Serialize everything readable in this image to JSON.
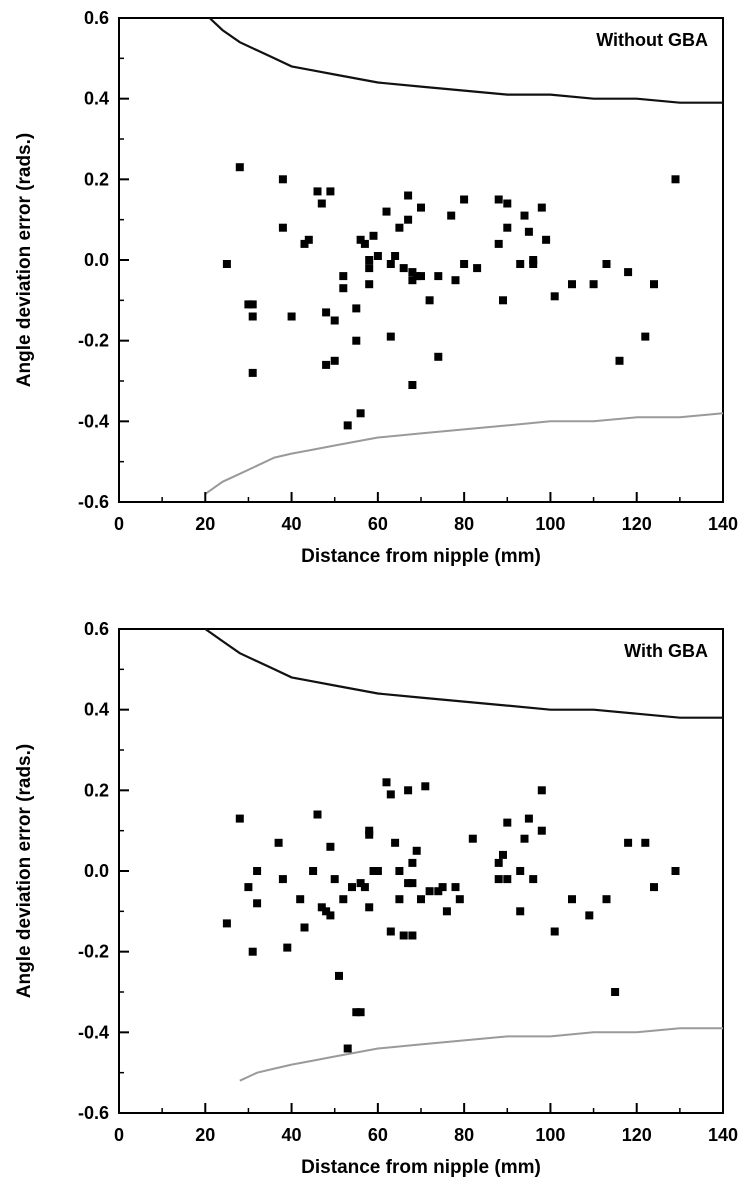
{
  "chart_data": [
    {
      "type": "scatter",
      "panel_label": "Without GBA",
      "xlabel": "Distance from nipple (mm)",
      "ylabel": "Angle deviation error (rads.)",
      "xlim": [
        0,
        140
      ],
      "ylim": [
        -0.6,
        0.6
      ],
      "xticks": [
        0,
        20,
        40,
        60,
        80,
        100,
        120,
        140
      ],
      "xtick_labels": [
        "0",
        "20",
        "40",
        "60",
        "80",
        "100",
        "120",
        "140"
      ],
      "yticks": [
        -0.6,
        -0.4,
        -0.2,
        0.0,
        0.2,
        0.4,
        0.6
      ],
      "ytick_labels": [
        "-0.6",
        "-0.4",
        "-0.2",
        "0.0",
        "0.2",
        "0.4",
        "0.6"
      ],
      "grid": false,
      "points": [
        [
          25,
          -0.01
        ],
        [
          28,
          0.23
        ],
        [
          30,
          -0.11
        ],
        [
          31,
          -0.11
        ],
        [
          31,
          -0.14
        ],
        [
          31,
          -0.28
        ],
        [
          38,
          0.2
        ],
        [
          38,
          0.08
        ],
        [
          40,
          -0.14
        ],
        [
          43,
          0.04
        ],
        [
          44,
          0.05
        ],
        [
          46,
          0.17
        ],
        [
          47,
          0.14
        ],
        [
          48,
          -0.13
        ],
        [
          48,
          -0.26
        ],
        [
          49,
          0.17
        ],
        [
          50,
          -0.25
        ],
        [
          50,
          -0.15
        ],
        [
          52,
          -0.04
        ],
        [
          52,
          -0.07
        ],
        [
          53,
          -0.41
        ],
        [
          55,
          -0.12
        ],
        [
          55,
          -0.2
        ],
        [
          56,
          0.05
        ],
        [
          56,
          -0.38
        ],
        [
          57,
          0.04
        ],
        [
          58,
          0.0
        ],
        [
          58,
          -0.02
        ],
        [
          58,
          -0.06
        ],
        [
          59,
          0.06
        ],
        [
          60,
          0.01
        ],
        [
          62,
          0.12
        ],
        [
          63,
          -0.19
        ],
        [
          63,
          -0.01
        ],
        [
          64,
          0.01
        ],
        [
          65,
          0.08
        ],
        [
          66,
          -0.02
        ],
        [
          67,
          0.16
        ],
        [
          67,
          0.1
        ],
        [
          68,
          -0.03
        ],
        [
          68,
          -0.05
        ],
        [
          68,
          -0.31
        ],
        [
          69,
          -0.04
        ],
        [
          70,
          -0.04
        ],
        [
          70,
          0.13
        ],
        [
          72,
          -0.1
        ],
        [
          74,
          -0.04
        ],
        [
          74,
          -0.24
        ],
        [
          77,
          0.11
        ],
        [
          78,
          -0.05
        ],
        [
          80,
          0.15
        ],
        [
          80,
          -0.01
        ],
        [
          83,
          -0.02
        ],
        [
          88,
          0.04
        ],
        [
          88,
          0.15
        ],
        [
          89,
          -0.1
        ],
        [
          90,
          0.14
        ],
        [
          90,
          0.08
        ],
        [
          93,
          -0.01
        ],
        [
          94,
          0.11
        ],
        [
          95,
          0.07
        ],
        [
          96,
          0.0
        ],
        [
          96,
          -0.01
        ],
        [
          98,
          0.13
        ],
        [
          99,
          0.05
        ],
        [
          101,
          -0.09
        ],
        [
          105,
          -0.06
        ],
        [
          110,
          -0.06
        ],
        [
          113,
          -0.01
        ],
        [
          116,
          -0.25
        ],
        [
          118,
          -0.03
        ],
        [
          122,
          -0.19
        ],
        [
          124,
          -0.06
        ],
        [
          129,
          0.2
        ]
      ],
      "upper_curve": [
        [
          21,
          0.6
        ],
        [
          24,
          0.57
        ],
        [
          28,
          0.54
        ],
        [
          32,
          0.52
        ],
        [
          36,
          0.5
        ],
        [
          40,
          0.48
        ],
        [
          45,
          0.47
        ],
        [
          50,
          0.46
        ],
        [
          55,
          0.45
        ],
        [
          60,
          0.44
        ],
        [
          70,
          0.43
        ],
        [
          80,
          0.42
        ],
        [
          90,
          0.41
        ],
        [
          100,
          0.41
        ],
        [
          110,
          0.4
        ],
        [
          120,
          0.4
        ],
        [
          130,
          0.39
        ],
        [
          140,
          0.39
        ]
      ],
      "lower_curve": [
        [
          20,
          -0.58
        ],
        [
          24,
          -0.55
        ],
        [
          28,
          -0.53
        ],
        [
          32,
          -0.51
        ],
        [
          36,
          -0.49
        ],
        [
          40,
          -0.48
        ],
        [
          45,
          -0.47
        ],
        [
          50,
          -0.46
        ],
        [
          55,
          -0.45
        ],
        [
          60,
          -0.44
        ],
        [
          70,
          -0.43
        ],
        [
          80,
          -0.42
        ],
        [
          90,
          -0.41
        ],
        [
          100,
          -0.4
        ],
        [
          110,
          -0.4
        ],
        [
          120,
          -0.39
        ],
        [
          130,
          -0.39
        ],
        [
          140,
          -0.38
        ]
      ]
    },
    {
      "type": "scatter",
      "panel_label": "With GBA",
      "xlabel": "Distance from nipple (mm)",
      "ylabel": "Angle deviation error (rads.)",
      "xlim": [
        0,
        140
      ],
      "ylim": [
        -0.6,
        0.6
      ],
      "xticks": [
        0,
        20,
        40,
        60,
        80,
        100,
        120,
        140
      ],
      "xtick_labels": [
        "0",
        "20",
        "40",
        "60",
        "80",
        "100",
        "120",
        "140"
      ],
      "yticks": [
        -0.6,
        -0.4,
        -0.2,
        0.0,
        0.2,
        0.4,
        0.6
      ],
      "ytick_labels": [
        "-0.6",
        "-0.4",
        "-0.2",
        "0.0",
        "0.2",
        "0.4",
        "0.6"
      ],
      "grid": false,
      "points": [
        [
          25,
          -0.13
        ],
        [
          28,
          0.13
        ],
        [
          30,
          -0.04
        ],
        [
          31,
          -0.2
        ],
        [
          32,
          0.0
        ],
        [
          32,
          -0.08
        ],
        [
          37,
          0.07
        ],
        [
          38,
          -0.02
        ],
        [
          39,
          -0.19
        ],
        [
          42,
          -0.07
        ],
        [
          43,
          -0.14
        ],
        [
          45,
          0.0
        ],
        [
          46,
          0.14
        ],
        [
          47,
          -0.09
        ],
        [
          48,
          -0.1
        ],
        [
          49,
          0.06
        ],
        [
          49,
          -0.11
        ],
        [
          50,
          -0.02
        ],
        [
          51,
          -0.26
        ],
        [
          52,
          -0.07
        ],
        [
          53,
          -0.44
        ],
        [
          54,
          -0.04
        ],
        [
          55,
          -0.35
        ],
        [
          56,
          -0.35
        ],
        [
          56,
          -0.03
        ],
        [
          57,
          -0.04
        ],
        [
          58,
          0.09
        ],
        [
          58,
          0.1
        ],
        [
          58,
          -0.09
        ],
        [
          59,
          0.0
        ],
        [
          60,
          0.0
        ],
        [
          62,
          0.22
        ],
        [
          63,
          0.19
        ],
        [
          63,
          -0.15
        ],
        [
          64,
          0.07
        ],
        [
          65,
          0.0
        ],
        [
          65,
          -0.07
        ],
        [
          66,
          -0.16
        ],
        [
          67,
          0.2
        ],
        [
          67,
          -0.03
        ],
        [
          68,
          0.02
        ],
        [
          68,
          -0.03
        ],
        [
          68,
          -0.16
        ],
        [
          69,
          0.05
        ],
        [
          70,
          -0.07
        ],
        [
          71,
          0.21
        ],
        [
          72,
          -0.05
        ],
        [
          74,
          -0.05
        ],
        [
          75,
          -0.04
        ],
        [
          76,
          -0.1
        ],
        [
          78,
          -0.04
        ],
        [
          79,
          -0.07
        ],
        [
          82,
          0.08
        ],
        [
          88,
          0.02
        ],
        [
          88,
          -0.02
        ],
        [
          89,
          0.04
        ],
        [
          90,
          0.12
        ],
        [
          90,
          -0.02
        ],
        [
          93,
          0.0
        ],
        [
          93,
          -0.1
        ],
        [
          94,
          0.08
        ],
        [
          95,
          0.13
        ],
        [
          96,
          -0.02
        ],
        [
          98,
          0.1
        ],
        [
          98,
          0.2
        ],
        [
          101,
          -0.15
        ],
        [
          105,
          -0.07
        ],
        [
          109,
          -0.11
        ],
        [
          113,
          -0.07
        ],
        [
          115,
          -0.3
        ],
        [
          118,
          0.07
        ],
        [
          122,
          0.07
        ],
        [
          124,
          -0.04
        ],
        [
          129,
          0.0
        ]
      ],
      "upper_curve": [
        [
          20,
          0.6
        ],
        [
          24,
          0.57
        ],
        [
          28,
          0.54
        ],
        [
          32,
          0.52
        ],
        [
          36,
          0.5
        ],
        [
          40,
          0.48
        ],
        [
          45,
          0.47
        ],
        [
          50,
          0.46
        ],
        [
          55,
          0.45
        ],
        [
          60,
          0.44
        ],
        [
          70,
          0.43
        ],
        [
          80,
          0.42
        ],
        [
          90,
          0.41
        ],
        [
          100,
          0.4
        ],
        [
          110,
          0.4
        ],
        [
          120,
          0.39
        ],
        [
          130,
          0.38
        ],
        [
          140,
          0.38
        ]
      ],
      "lower_curve": [
        [
          28,
          -0.52
        ],
        [
          32,
          -0.5
        ],
        [
          36,
          -0.49
        ],
        [
          40,
          -0.48
        ],
        [
          45,
          -0.47
        ],
        [
          50,
          -0.46
        ],
        [
          55,
          -0.45
        ],
        [
          60,
          -0.44
        ],
        [
          70,
          -0.43
        ],
        [
          80,
          -0.42
        ],
        [
          90,
          -0.41
        ],
        [
          100,
          -0.41
        ],
        [
          110,
          -0.4
        ],
        [
          120,
          -0.4
        ],
        [
          130,
          -0.39
        ],
        [
          140,
          -0.39
        ]
      ]
    }
  ]
}
